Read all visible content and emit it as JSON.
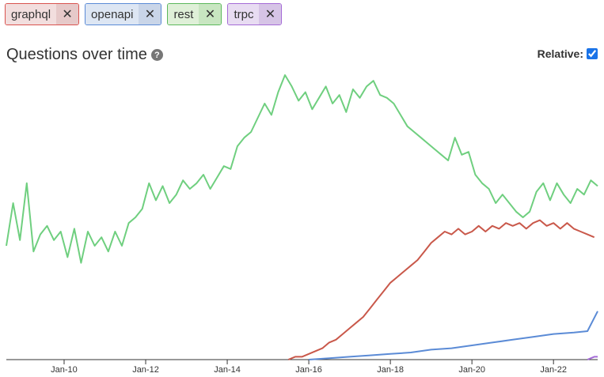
{
  "tags": [
    {
      "label": "graphql",
      "remove": "✕",
      "bg": "#f2dede",
      "xbg": "#e6c9c9",
      "border": "#d9534f"
    },
    {
      "label": "openapi",
      "remove": "✕",
      "bg": "#dde6f3",
      "xbg": "#c9d5e8",
      "border": "#5b8bd6"
    },
    {
      "label": "rest",
      "remove": "✕",
      "bg": "#dff0d8",
      "xbg": "#c8e6c1",
      "border": "#5cb85c"
    },
    {
      "label": "trpc",
      "remove": "✕",
      "bg": "#e8dcf2",
      "xbg": "#d6c4e6",
      "border": "#a46bd6"
    }
  ],
  "header": {
    "title": "Questions over time",
    "help_icon": "?",
    "relative_label": "Relative:",
    "relative_checked": true
  },
  "colors": {
    "rest": "#6fcf7f",
    "graphql": "#c9584a",
    "openapi": "#5b8bd6",
    "trpc": "#a46bd6",
    "axis": "#333333"
  },
  "chart_data": {
    "type": "line",
    "x_ticks": [
      "Jan-10",
      "Jan-12",
      "Jan-14",
      "Jan-16",
      "Jan-18",
      "Jan-20",
      "Jan-22"
    ],
    "xlim": [
      "2008-08",
      "2023-02"
    ],
    "grid": false,
    "series": [
      {
        "name": "rest",
        "points": [
          [
            "2008-08",
            0.4
          ],
          [
            "2008-10",
            0.55
          ],
          [
            "2008-12",
            0.42
          ],
          [
            "2009-02",
            0.62
          ],
          [
            "2009-04",
            0.38
          ],
          [
            "2009-06",
            0.44
          ],
          [
            "2009-08",
            0.47
          ],
          [
            "2009-10",
            0.42
          ],
          [
            "2009-12",
            0.45
          ],
          [
            "2010-02",
            0.36
          ],
          [
            "2010-04",
            0.46
          ],
          [
            "2010-06",
            0.34
          ],
          [
            "2010-08",
            0.45
          ],
          [
            "2010-10",
            0.4
          ],
          [
            "2010-12",
            0.43
          ],
          [
            "2011-02",
            0.38
          ],
          [
            "2011-04",
            0.45
          ],
          [
            "2011-06",
            0.4
          ],
          [
            "2011-08",
            0.48
          ],
          [
            "2011-10",
            0.5
          ],
          [
            "2011-12",
            0.53
          ],
          [
            "2012-02",
            0.62
          ],
          [
            "2012-04",
            0.56
          ],
          [
            "2012-06",
            0.61
          ],
          [
            "2012-08",
            0.55
          ],
          [
            "2012-10",
            0.58
          ],
          [
            "2012-12",
            0.63
          ],
          [
            "2013-02",
            0.6
          ],
          [
            "2013-04",
            0.62
          ],
          [
            "2013-06",
            0.65
          ],
          [
            "2013-08",
            0.6
          ],
          [
            "2013-10",
            0.64
          ],
          [
            "2013-12",
            0.68
          ],
          [
            "2014-02",
            0.67
          ],
          [
            "2014-04",
            0.75
          ],
          [
            "2014-06",
            0.78
          ],
          [
            "2014-08",
            0.8
          ],
          [
            "2014-10",
            0.85
          ],
          [
            "2014-12",
            0.9
          ],
          [
            "2015-02",
            0.86
          ],
          [
            "2015-04",
            0.94
          ],
          [
            "2015-06",
            1.0
          ],
          [
            "2015-08",
            0.96
          ],
          [
            "2015-10",
            0.91
          ],
          [
            "2015-12",
            0.94
          ],
          [
            "2016-02",
            0.88
          ],
          [
            "2016-04",
            0.92
          ],
          [
            "2016-06",
            0.96
          ],
          [
            "2016-08",
            0.9
          ],
          [
            "2016-10",
            0.93
          ],
          [
            "2016-12",
            0.87
          ],
          [
            "2017-02",
            0.95
          ],
          [
            "2017-04",
            0.92
          ],
          [
            "2017-06",
            0.96
          ],
          [
            "2017-08",
            0.98
          ],
          [
            "2017-10",
            0.93
          ],
          [
            "2017-12",
            0.92
          ],
          [
            "2018-02",
            0.9
          ],
          [
            "2018-04",
            0.86
          ],
          [
            "2018-06",
            0.82
          ],
          [
            "2018-08",
            0.8
          ],
          [
            "2018-10",
            0.78
          ],
          [
            "2018-12",
            0.76
          ],
          [
            "2019-02",
            0.74
          ],
          [
            "2019-04",
            0.72
          ],
          [
            "2019-06",
            0.7
          ],
          [
            "2019-08",
            0.78
          ],
          [
            "2019-10",
            0.72
          ],
          [
            "2019-12",
            0.73
          ],
          [
            "2020-02",
            0.65
          ],
          [
            "2020-04",
            0.62
          ],
          [
            "2020-06",
            0.6
          ],
          [
            "2020-08",
            0.55
          ],
          [
            "2020-10",
            0.58
          ],
          [
            "2020-12",
            0.55
          ],
          [
            "2021-02",
            0.52
          ],
          [
            "2021-04",
            0.5
          ],
          [
            "2021-06",
            0.52
          ],
          [
            "2021-08",
            0.59
          ],
          [
            "2021-10",
            0.62
          ],
          [
            "2021-12",
            0.56
          ],
          [
            "2022-02",
            0.62
          ],
          [
            "2022-04",
            0.58
          ],
          [
            "2022-06",
            0.55
          ],
          [
            "2022-08",
            0.6
          ],
          [
            "2022-10",
            0.58
          ],
          [
            "2022-12",
            0.63
          ],
          [
            "2023-02",
            0.61
          ]
        ]
      },
      {
        "name": "graphql",
        "points": [
          [
            "2015-07",
            0.0
          ],
          [
            "2015-09",
            0.01
          ],
          [
            "2015-11",
            0.01
          ],
          [
            "2016-01",
            0.02
          ],
          [
            "2016-03",
            0.03
          ],
          [
            "2016-05",
            0.04
          ],
          [
            "2016-07",
            0.06
          ],
          [
            "2016-09",
            0.07
          ],
          [
            "2016-11",
            0.09
          ],
          [
            "2017-01",
            0.11
          ],
          [
            "2017-03",
            0.13
          ],
          [
            "2017-05",
            0.15
          ],
          [
            "2017-07",
            0.18
          ],
          [
            "2017-09",
            0.21
          ],
          [
            "2017-11",
            0.24
          ],
          [
            "2018-01",
            0.27
          ],
          [
            "2018-03",
            0.29
          ],
          [
            "2018-05",
            0.31
          ],
          [
            "2018-07",
            0.33
          ],
          [
            "2018-09",
            0.35
          ],
          [
            "2018-11",
            0.38
          ],
          [
            "2019-01",
            0.41
          ],
          [
            "2019-03",
            0.43
          ],
          [
            "2019-05",
            0.45
          ],
          [
            "2019-07",
            0.44
          ],
          [
            "2019-09",
            0.46
          ],
          [
            "2019-11",
            0.44
          ],
          [
            "2020-01",
            0.45
          ],
          [
            "2020-03",
            0.47
          ],
          [
            "2020-05",
            0.45
          ],
          [
            "2020-07",
            0.47
          ],
          [
            "2020-09",
            0.46
          ],
          [
            "2020-11",
            0.48
          ],
          [
            "2021-01",
            0.47
          ],
          [
            "2021-03",
            0.48
          ],
          [
            "2021-05",
            0.46
          ],
          [
            "2021-07",
            0.48
          ],
          [
            "2021-09",
            0.49
          ],
          [
            "2021-11",
            0.47
          ],
          [
            "2022-01",
            0.48
          ],
          [
            "2022-03",
            0.46
          ],
          [
            "2022-05",
            0.48
          ],
          [
            "2022-07",
            0.46
          ],
          [
            "2022-09",
            0.45
          ],
          [
            "2022-11",
            0.44
          ],
          [
            "2023-01",
            0.43
          ]
        ]
      },
      {
        "name": "openapi",
        "points": [
          [
            "2016-01",
            0.0
          ],
          [
            "2016-07",
            0.005
          ],
          [
            "2017-01",
            0.01
          ],
          [
            "2017-07",
            0.015
          ],
          [
            "2018-01",
            0.02
          ],
          [
            "2018-07",
            0.025
          ],
          [
            "2019-01",
            0.035
          ],
          [
            "2019-07",
            0.04
          ],
          [
            "2020-01",
            0.05
          ],
          [
            "2020-07",
            0.06
          ],
          [
            "2021-01",
            0.07
          ],
          [
            "2021-07",
            0.08
          ],
          [
            "2022-01",
            0.09
          ],
          [
            "2022-07",
            0.095
          ],
          [
            "2022-11",
            0.1
          ],
          [
            "2023-02",
            0.17
          ]
        ]
      },
      {
        "name": "trpc",
        "points": [
          [
            "2022-11",
            0.0
          ],
          [
            "2023-01",
            0.01
          ],
          [
            "2023-02",
            0.01
          ]
        ]
      }
    ]
  }
}
